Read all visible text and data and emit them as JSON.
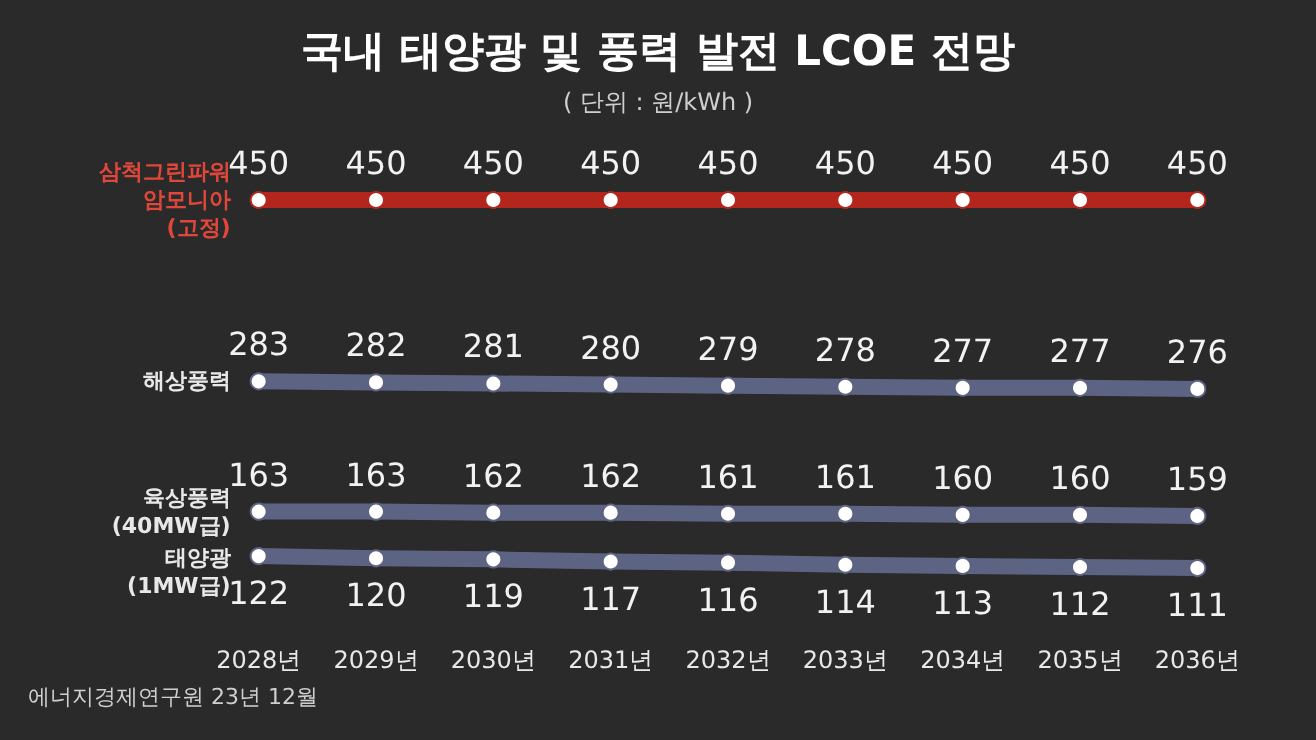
{
  "chart_data": {
    "type": "line",
    "title": "국내 태양광 및 풍력 발전 LCOE 전망",
    "subtitle": "( 단위 : 원/kWh )",
    "categories": [
      "2028년",
      "2029년",
      "2030년",
      "2031년",
      "2032년",
      "2033년",
      "2034년",
      "2035년",
      "2036년"
    ],
    "series": [
      {
        "name": "삼척그린파워\n암모니아\n(고정)",
        "color": "#b3261e",
        "values": [
          450,
          450,
          450,
          450,
          450,
          450,
          450,
          450,
          450
        ]
      },
      {
        "name": "해상풍력",
        "color": "#5d6483",
        "values": [
          283,
          282,
          281,
          280,
          279,
          278,
          277,
          277,
          276
        ]
      },
      {
        "name": "육상풍력\n(40MW급)",
        "color": "#5d6483",
        "values": [
          163,
          163,
          162,
          162,
          161,
          161,
          160,
          160,
          159
        ]
      },
      {
        "name": "태양광\n(1MW급)",
        "color": "#5d6483",
        "values": [
          122,
          120,
          119,
          117,
          116,
          114,
          113,
          112,
          111
        ]
      }
    ],
    "data_labels": true,
    "marker": "circle",
    "line_style": "solid",
    "grid": false,
    "legend": false,
    "tick_labels": "x",
    "annotations": [
      "에너지경제연구원 23년 12월"
    ]
  }
}
